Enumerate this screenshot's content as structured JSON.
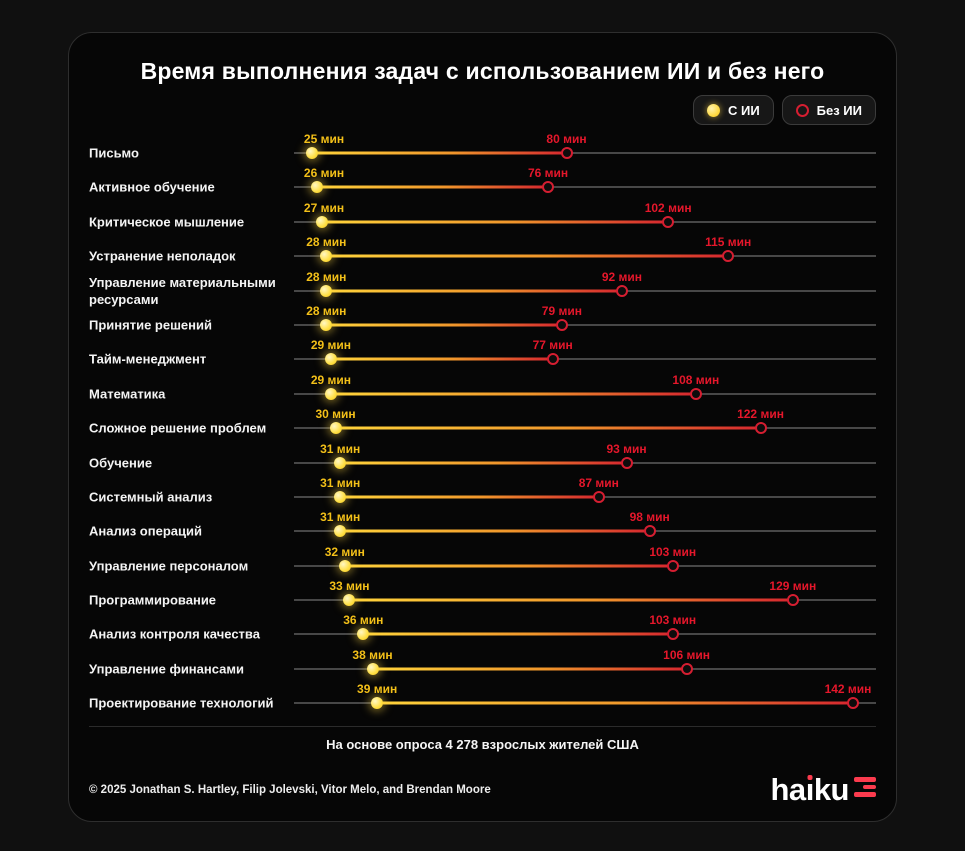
{
  "title": "Время выполнения задач с использованием ИИ и без него",
  "legend": {
    "with_ai": "С ИИ",
    "without_ai": "Без ИИ"
  },
  "unit": "мин",
  "footnote": "На основе опроса 4 278 взрослых жителей США",
  "copyright": "© 2025 Jonathan S. Hartley, Filip Jolevski, Vitor Melo, and Brendan Moore",
  "logo": {
    "text": "haiku",
    "part1": "ha",
    "dotless_i": "ı",
    "part2": "ku"
  },
  "colors": {
    "ai_dot": "#ffdf4d",
    "ai_label": "#f3c019",
    "no_ai": "#e5172b",
    "no_ai_ring": "#d51e31",
    "track": "#474747",
    "card_bg": "#060606",
    "page_bg": "#101010",
    "logo_accent": "#fb3b4e"
  },
  "chart_data": {
    "type": "scatter",
    "variant": "dumbbell",
    "title": "Время выполнения задач с использованием ИИ и без него",
    "unit": "мин",
    "axis": {
      "min": 21,
      "max": 147
    },
    "legend_position": "top-right",
    "grid": false,
    "categories": [
      "Письмо",
      "Активное обучение",
      "Критическое мышление",
      "Устранение неполадок",
      "Управление материальными ресурсами",
      "Принятие решений",
      "Тайм-менеджмент",
      "Математика",
      "Сложное решение проблем",
      "Обучение",
      "Системный анализ",
      "Анализ операций",
      "Управление персоналом",
      "Программирование",
      "Анализ контроля качества",
      "Управление финансами",
      "Проектирование технологий"
    ],
    "series": [
      {
        "name": "С ИИ",
        "color": "#ffdf4d",
        "values": [
          25,
          26,
          27,
          28,
          28,
          28,
          29,
          29,
          30,
          31,
          31,
          31,
          32,
          33,
          36,
          38,
          39
        ]
      },
      {
        "name": "Без ИИ",
        "color": "#e5172b",
        "values": [
          80,
          76,
          102,
          115,
          92,
          79,
          77,
          108,
          122,
          93,
          87,
          98,
          103,
          129,
          103,
          106,
          142
        ]
      }
    ]
  }
}
